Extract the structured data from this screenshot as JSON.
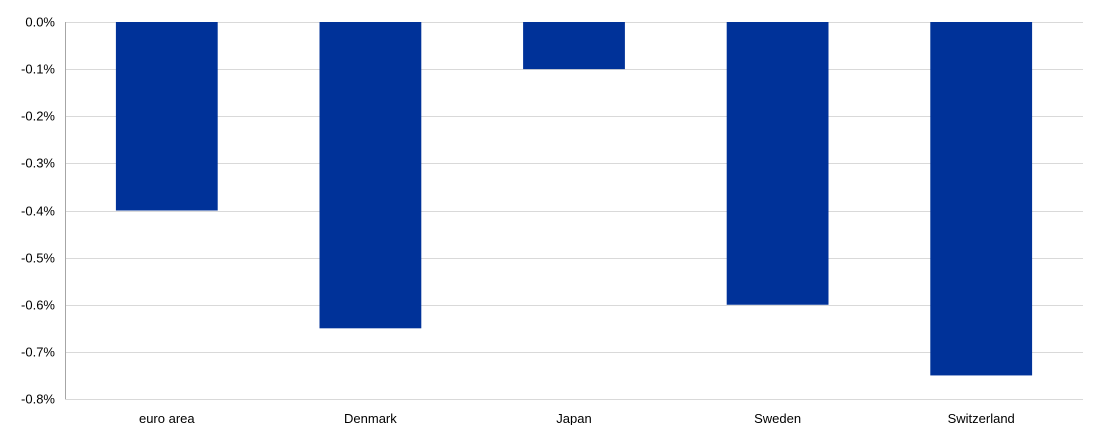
{
  "chart_data": {
    "type": "bar",
    "title": "",
    "xlabel": "",
    "ylabel": "",
    "categories": [
      "euro area",
      "Denmark",
      "Japan",
      "Sweden",
      "Switzerland"
    ],
    "values": [
      -0.4,
      -0.65,
      -0.1,
      -0.6,
      -0.75
    ],
    "unit": "%",
    "ylim": [
      -0.8,
      0.0
    ],
    "yticks": [
      0.0,
      -0.1,
      -0.2,
      -0.3,
      -0.4,
      -0.5,
      -0.6,
      -0.7,
      -0.8
    ],
    "ytick_labels": [
      "0.0%",
      "-0.1%",
      "-0.2%",
      "-0.3%",
      "-0.4%",
      "-0.5%",
      "-0.6%",
      "-0.7%",
      "-0.8%"
    ],
    "bar_color": "#003299",
    "grid": true,
    "legend": "none"
  }
}
